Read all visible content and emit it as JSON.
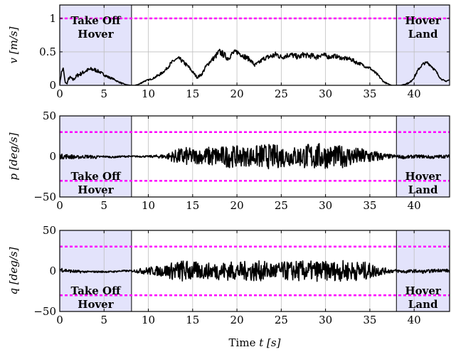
{
  "chart_data": [
    {
      "type": "line",
      "ylabel_var": "v",
      "ylabel_unit": "[m/s]",
      "xlim": [
        0,
        44
      ],
      "ylim": [
        0,
        1.2
      ],
      "yticks": [
        "0",
        "0.5",
        "1"
      ],
      "ytick_values": [
        0,
        0.5,
        1
      ],
      "xticks": [
        "0",
        "5",
        "10",
        "15",
        "20",
        "25",
        "30",
        "35",
        "40"
      ],
      "limit_lines": [
        1
      ],
      "regions": [
        {
          "x0": 0,
          "x1": 8.1,
          "label_lines": [
            "Take Off",
            "Hover"
          ],
          "label_pos": "top"
        },
        {
          "x0": 38,
          "x1": 44,
          "label_lines": [
            "Hover",
            "Land"
          ],
          "label_pos": "top"
        }
      ],
      "series": [
        {
          "x": [
            0,
            0.2,
            0.4,
            0.6,
            0.8,
            1,
            1.2,
            1.5,
            2,
            2.5,
            3,
            3.5,
            4,
            4.5,
            5,
            5.5,
            6,
            6.5,
            7,
            7.5,
            8,
            8.5,
            9,
            9.5,
            10,
            10.5,
            11,
            11.5,
            12,
            12.5,
            13,
            13.5,
            14,
            14.5,
            15,
            15.5,
            16,
            16.5,
            17,
            17.5,
            18,
            18.5,
            19,
            19.5,
            20,
            20.5,
            21,
            21.5,
            22,
            22.5,
            23,
            23.5,
            24,
            24.5,
            25,
            25.5,
            26,
            26.5,
            27,
            27.5,
            28,
            28.5,
            29,
            29.5,
            30,
            30.5,
            31,
            31.5,
            32,
            32.5,
            33,
            33.5,
            34,
            34.5,
            35,
            35.5,
            36,
            36.5,
            37,
            37.5,
            38,
            38.5,
            39,
            39.5,
            40,
            40.5,
            41,
            41.5,
            42,
            42.5,
            43,
            43.5,
            44
          ],
          "y": [
            0.02,
            0.2,
            0.25,
            0.05,
            0.02,
            0.1,
            0.12,
            0.08,
            0.15,
            0.18,
            0.22,
            0.24,
            0.23,
            0.2,
            0.16,
            0.12,
            0.1,
            0.06,
            0.03,
            0.01,
            0.0,
            0.0,
            0.02,
            0.06,
            0.08,
            0.1,
            0.14,
            0.18,
            0.24,
            0.32,
            0.38,
            0.4,
            0.34,
            0.28,
            0.2,
            0.12,
            0.16,
            0.28,
            0.36,
            0.42,
            0.5,
            0.46,
            0.4,
            0.48,
            0.5,
            0.46,
            0.42,
            0.38,
            0.3,
            0.34,
            0.4,
            0.42,
            0.44,
            0.46,
            0.42,
            0.44,
            0.46,
            0.44,
            0.42,
            0.46,
            0.44,
            0.44,
            0.42,
            0.46,
            0.44,
            0.42,
            0.44,
            0.42,
            0.4,
            0.4,
            0.38,
            0.34,
            0.32,
            0.28,
            0.26,
            0.2,
            0.14,
            0.06,
            0.02,
            0.0,
            0.0,
            0.0,
            0.02,
            0.04,
            0.12,
            0.24,
            0.32,
            0.34,
            0.28,
            0.2,
            0.1,
            0.06,
            0.08
          ],
          "noise": [
            0.01,
            0.02,
            0.02,
            0.01,
            0.01,
            0.02,
            0.02,
            0.02,
            0.03,
            0.03,
            0.03,
            0.03,
            0.03,
            0.02,
            0.02,
            0.02,
            0.01,
            0.01,
            0.01,
            0.0,
            0.0,
            0.0,
            0.01,
            0.01,
            0.01,
            0.01,
            0.02,
            0.02,
            0.02,
            0.03,
            0.03,
            0.03,
            0.03,
            0.03,
            0.02,
            0.02,
            0.02,
            0.03,
            0.03,
            0.04,
            0.05,
            0.05,
            0.04,
            0.04,
            0.04,
            0.04,
            0.04,
            0.03,
            0.03,
            0.03,
            0.03,
            0.04,
            0.05,
            0.05,
            0.04,
            0.04,
            0.04,
            0.04,
            0.04,
            0.04,
            0.04,
            0.04,
            0.04,
            0.04,
            0.04,
            0.03,
            0.03,
            0.03,
            0.03,
            0.03,
            0.03,
            0.03,
            0.02,
            0.02,
            0.02,
            0.02,
            0.02,
            0.01,
            0.01,
            0.0,
            0.0,
            0.0,
            0.01,
            0.01,
            0.02,
            0.02,
            0.02,
            0.02,
            0.02,
            0.02,
            0.01,
            0.01,
            0.01
          ]
        }
      ]
    },
    {
      "type": "line",
      "ylabel_var": "p",
      "ylabel_unit": "[deg/s]",
      "xlim": [
        0,
        44
      ],
      "ylim": [
        -50,
        50
      ],
      "yticks": [
        "50",
        "0",
        "−50"
      ],
      "ytick_values": [
        50,
        0,
        -50
      ],
      "xticks": [
        "0",
        "5",
        "10",
        "15",
        "20",
        "25",
        "30",
        "35",
        "40"
      ],
      "limit_lines": [
        30,
        -30
      ],
      "regions": [
        {
          "x0": 0,
          "x1": 8.1,
          "label_lines": [
            "Take Off",
            "Hover"
          ],
          "label_pos": "bottom"
        },
        {
          "x0": 38,
          "x1": 44,
          "label_lines": [
            "Hover",
            "Land"
          ],
          "label_pos": "bottom"
        }
      ],
      "series": [
        {
          "x": [
            0,
            1,
            2,
            3,
            4,
            5,
            6,
            7,
            8,
            9,
            10,
            11,
            12,
            13,
            14,
            15,
            16,
            17,
            18,
            19,
            20,
            21,
            22,
            23,
            24,
            25,
            26,
            27,
            28,
            29,
            30,
            31,
            32,
            33,
            34,
            35,
            36,
            37,
            38,
            39,
            40,
            41,
            42,
            43,
            44
          ],
          "y": [
            0,
            0,
            -1,
            0,
            -1,
            0,
            -1,
            0,
            0,
            0,
            0,
            0,
            0,
            0,
            0,
            0,
            0,
            0,
            0,
            0,
            0,
            0,
            0,
            0,
            0,
            0,
            0,
            0,
            0,
            0,
            0,
            0,
            0,
            0,
            0,
            0,
            0,
            0,
            0,
            -1,
            0,
            0,
            -1,
            0,
            0
          ],
          "noise": [
            3,
            3,
            2,
            2,
            2,
            1,
            1,
            1,
            1,
            1,
            1,
            2,
            3,
            8,
            12,
            10,
            9,
            13,
            12,
            14,
            13,
            12,
            13,
            16,
            15,
            14,
            12,
            13,
            16,
            17,
            15,
            13,
            14,
            12,
            10,
            9,
            6,
            3,
            2,
            2,
            2,
            2,
            2,
            2,
            2
          ]
        }
      ]
    },
    {
      "type": "line",
      "ylabel_var": "q",
      "ylabel_unit": "[deg/s]",
      "xlim": [
        0,
        44
      ],
      "ylim": [
        -50,
        50
      ],
      "yticks": [
        "50",
        "0",
        "−50"
      ],
      "ytick_values": [
        50,
        0,
        -50
      ],
      "xticks": [
        "0",
        "5",
        "10",
        "15",
        "20",
        "25",
        "30",
        "35",
        "40"
      ],
      "xlabel_var": "t",
      "xlabel_text": "Time",
      "xlabel_unit": "[s]",
      "limit_lines": [
        30,
        -30
      ],
      "regions": [
        {
          "x0": 0,
          "x1": 8.1,
          "label_lines": [
            "Take Off",
            "Hover"
          ],
          "label_pos": "bottom"
        },
        {
          "x0": 38,
          "x1": 44,
          "label_lines": [
            "Hover",
            "Land"
          ],
          "label_pos": "bottom"
        }
      ],
      "series": [
        {
          "x": [
            0,
            1,
            2,
            3,
            4,
            5,
            6,
            7,
            8,
            9,
            10,
            11,
            12,
            13,
            14,
            15,
            16,
            17,
            18,
            19,
            20,
            21,
            22,
            23,
            24,
            25,
            26,
            27,
            28,
            29,
            30,
            31,
            32,
            33,
            34,
            35,
            36,
            37,
            38,
            39,
            40,
            41,
            42,
            43,
            44
          ],
          "y": [
            2,
            0,
            -1,
            -1,
            -1,
            -1,
            -1,
            0,
            0,
            0,
            0,
            0,
            0,
            0,
            0,
            0,
            0,
            0,
            0,
            0,
            0,
            0,
            0,
            0,
            0,
            0,
            0,
            0,
            0,
            0,
            0,
            0,
            0,
            0,
            0,
            0,
            0,
            0,
            0,
            -1,
            0,
            -1,
            0,
            1,
            0
          ],
          "noise": [
            3,
            2,
            2,
            1,
            1,
            1,
            1,
            1,
            1,
            3,
            5,
            6,
            8,
            12,
            14,
            12,
            10,
            10,
            11,
            12,
            11,
            12,
            13,
            12,
            11,
            11,
            12,
            13,
            12,
            13,
            12,
            12,
            13,
            12,
            12,
            10,
            6,
            3,
            2,
            2,
            2,
            2,
            2,
            2,
            2
          ]
        }
      ]
    }
  ],
  "colors": {
    "region_fill": "#e3e3fb",
    "limit_line": "#ff00ff",
    "signal": "#000000",
    "grid": "#bfbfbf"
  }
}
